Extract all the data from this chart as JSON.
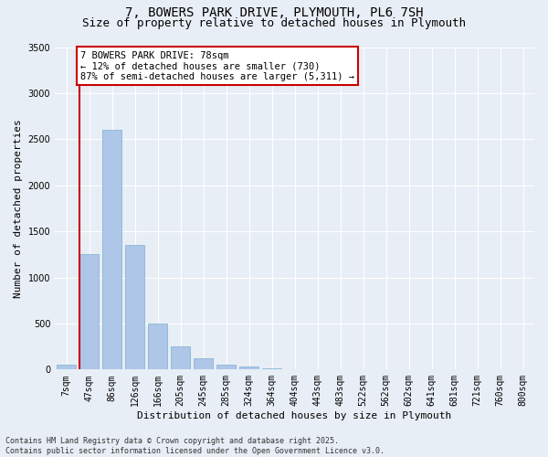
{
  "title": "7, BOWERS PARK DRIVE, PLYMOUTH, PL6 7SH",
  "subtitle": "Size of property relative to detached houses in Plymouth",
  "xlabel": "Distribution of detached houses by size in Plymouth",
  "ylabel": "Number of detached properties",
  "categories": [
    "7sqm",
    "47sqm",
    "86sqm",
    "126sqm",
    "166sqm",
    "205sqm",
    "245sqm",
    "285sqm",
    "324sqm",
    "364sqm",
    "404sqm",
    "443sqm",
    "483sqm",
    "522sqm",
    "562sqm",
    "602sqm",
    "641sqm",
    "681sqm",
    "721sqm",
    "760sqm",
    "800sqm"
  ],
  "values": [
    50,
    1250,
    2600,
    1350,
    500,
    250,
    120,
    55,
    35,
    15,
    5,
    0,
    0,
    0,
    0,
    0,
    0,
    0,
    0,
    0,
    0
  ],
  "bar_color": "#aec6e8",
  "bar_edge_color": "#7aafd4",
  "property_line_color": "#cc0000",
  "annotation_text": "7 BOWERS PARK DRIVE: 78sqm\n← 12% of detached houses are smaller (730)\n87% of semi-detached houses are larger (5,311) →",
  "annotation_box_color": "#ffffff",
  "annotation_box_edge_color": "#cc0000",
  "ylim": [
    0,
    3500
  ],
  "yticks": [
    0,
    500,
    1000,
    1500,
    2000,
    2500,
    3000,
    3500
  ],
  "background_color": "#e8eef5",
  "grid_color": "#ffffff",
  "footnote": "Contains HM Land Registry data © Crown copyright and database right 2025.\nContains public sector information licensed under the Open Government Licence v3.0.",
  "title_fontsize": 10,
  "subtitle_fontsize": 9,
  "xlabel_fontsize": 8,
  "ylabel_fontsize": 8,
  "annotation_fontsize": 7.5,
  "tick_fontsize": 7,
  "footnote_fontsize": 6
}
